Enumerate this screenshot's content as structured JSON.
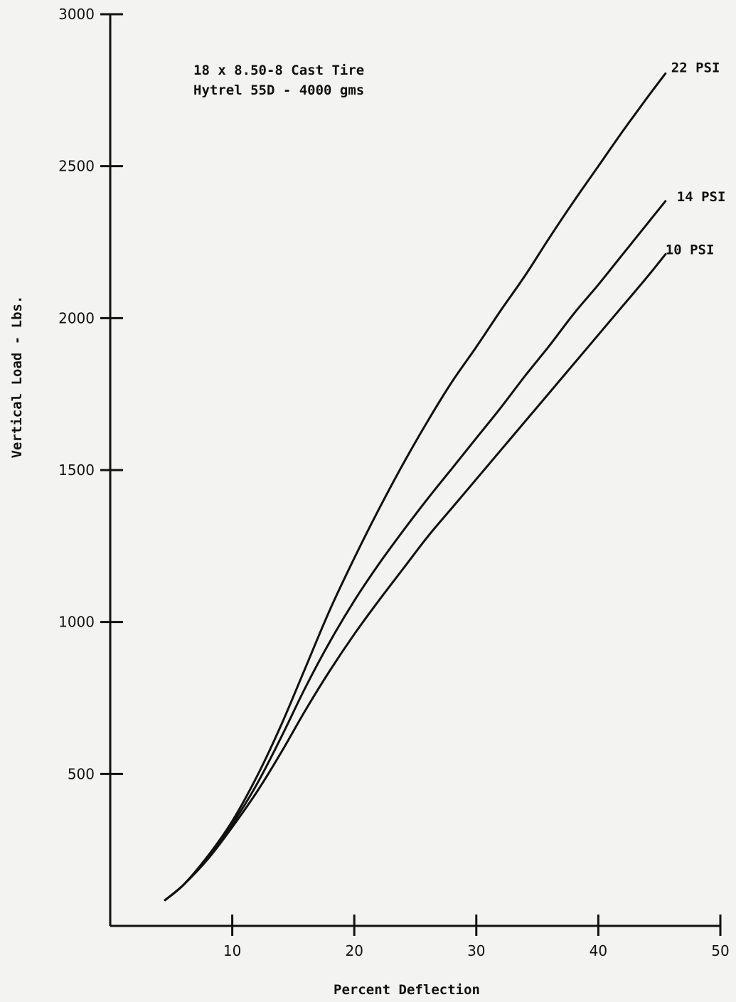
{
  "chart_data": {
    "type": "line",
    "xlabel": "Percent Deflection",
    "ylabel": "Vertical Load - Lbs.",
    "annotation_lines": [
      "18 x 8.50-8 Cast Tire",
      "Hytrel 55D - 4000 gms"
    ],
    "xlim": [
      0,
      50
    ],
    "ylim": [
      0,
      3000
    ],
    "x_ticks": [
      10,
      20,
      30,
      40,
      50
    ],
    "y_ticks": [
      500,
      1000,
      1500,
      2000,
      2500,
      3000
    ],
    "grid": false,
    "legend": "labels at line ends (right)",
    "series": [
      {
        "name": "22 PSI",
        "x": [
          4.5,
          6,
          8,
          10,
          12,
          14,
          16,
          18,
          20,
          22,
          24,
          26,
          28,
          30,
          32,
          34,
          36,
          38,
          40,
          42,
          44,
          45.5
        ],
        "y": [
          85,
          135,
          230,
          345,
          490,
          660,
          850,
          1040,
          1210,
          1370,
          1520,
          1660,
          1790,
          1905,
          2025,
          2140,
          2265,
          2385,
          2500,
          2615,
          2725,
          2805
        ]
      },
      {
        "name": "14 PSI",
        "x": [
          4.5,
          6,
          8,
          10,
          12,
          14,
          16,
          18,
          20,
          22,
          24,
          26,
          28,
          30,
          32,
          34,
          36,
          38,
          40,
          42,
          44,
          45.5
        ],
        "y": [
          85,
          135,
          225,
          335,
          465,
          620,
          785,
          935,
          1070,
          1190,
          1300,
          1405,
          1505,
          1605,
          1705,
          1810,
          1910,
          2015,
          2110,
          2210,
          2310,
          2385
        ]
      },
      {
        "name": "10 PSI",
        "x": [
          4.5,
          6,
          8,
          10,
          12,
          14,
          16,
          18,
          20,
          22,
          24,
          26,
          28,
          30,
          32,
          34,
          36,
          38,
          40,
          42,
          44,
          45.5
        ],
        "y": [
          85,
          135,
          220,
          325,
          440,
          570,
          710,
          840,
          960,
          1070,
          1175,
          1280,
          1375,
          1470,
          1565,
          1660,
          1755,
          1850,
          1945,
          2040,
          2135,
          2210
        ]
      }
    ]
  }
}
